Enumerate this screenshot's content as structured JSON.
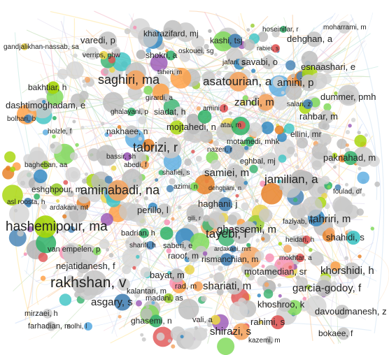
{
  "palette": [
    "#c8c8c8",
    "#bdbdbd",
    "#d4d4d4",
    "#f4a460",
    "#9acd32",
    "#3cb371",
    "#4682b4",
    "#e9d44a",
    "#e05656",
    "#9b59b6",
    "#40c4c4",
    "#ff9f43",
    "#f78fb3",
    "#7ed957",
    "#5dade2",
    "#b0b0b0",
    "#cfcfcf",
    "#e67e22",
    "#27ae60",
    "#2e86c1",
    "#a6d608"
  ],
  "edge_colors": [
    "#f2b8c6",
    "#b6d7a8",
    "#c9daf8",
    "#fce5cd",
    "#d9d2e9",
    "#cfe2f3",
    "#f9cb9c",
    "#b4e1d9",
    "#ffe599"
  ],
  "authors": [
    {
      "label": "gandjalikhan-nassab, sa"
    },
    {
      "label": "varedi, p"
    },
    {
      "label": "kharazifard, mj"
    },
    {
      "label": "kashi, tsj"
    },
    {
      "label": "hoseinifar, r"
    },
    {
      "label": "moharrami, m"
    },
    {
      "label": "dehghan, a"
    },
    {
      "label": "rabiei, s"
    },
    {
      "label": "oskouei, sg"
    },
    {
      "label": "shokri, a"
    },
    {
      "label": "verrips, ghw"
    },
    {
      "label": "jafari, s"
    },
    {
      "label": "savabi, o"
    },
    {
      "label": "esnaashari, e"
    },
    {
      "label": "taheri, m"
    },
    {
      "label": "saghiri, ma"
    },
    {
      "label": "asatourian, a"
    },
    {
      "label": "bakhtiar, h"
    },
    {
      "label": "amini, p"
    },
    {
      "label": "girardi, a"
    },
    {
      "label": "dashtimoghadam, e"
    },
    {
      "label": "ghalayani, p"
    },
    {
      "label": "siadat, h"
    },
    {
      "label": "zandi, m"
    },
    {
      "label": "salari, z"
    },
    {
      "label": "dummer, pmh"
    },
    {
      "label": "bolhari, b"
    },
    {
      "label": "amini, f"
    },
    {
      "label": "rahbar, m"
    },
    {
      "label": "holzle, f"
    },
    {
      "label": "nakhaee, n"
    },
    {
      "label": "mojtahedi, n"
    },
    {
      "label": "atai, m"
    },
    {
      "label": "ellini, mr"
    },
    {
      "label": "nazeri, r"
    },
    {
      "label": "tabrizi, r"
    },
    {
      "label": "bagheban, aa"
    },
    {
      "label": "motamedi, mhk"
    },
    {
      "label": "bassir, sh"
    },
    {
      "label": "abedi, f"
    },
    {
      "label": "eghbal, mj"
    },
    {
      "label": "paknahad, m"
    },
    {
      "label": "eshghpour, m"
    },
    {
      "label": "shafiei, s"
    },
    {
      "label": "samiei, m"
    },
    {
      "label": "azimi, n"
    },
    {
      "label": "dehghani, n"
    },
    {
      "label": "jamilian, a"
    },
    {
      "label": "foulad, df"
    },
    {
      "label": "aminabadi, na"
    },
    {
      "label": "asl roosta, h"
    },
    {
      "label": "ardakani, mt"
    },
    {
      "label": "perillo, l"
    },
    {
      "label": "haghani, j"
    },
    {
      "label": "fazlyab, m"
    },
    {
      "label": "hashemipour, ma"
    },
    {
      "label": "gili, r"
    },
    {
      "label": "ghassemi, m"
    },
    {
      "label": "tahriri, m"
    },
    {
      "label": "badrian, h"
    },
    {
      "label": "saberi, e"
    },
    {
      "label": "tayebi, l"
    },
    {
      "label": "heidari, h"
    },
    {
      "label": "van empelen, p"
    },
    {
      "label": "sharifi, h"
    },
    {
      "label": "raoof, m"
    },
    {
      "label": "shahidi, s"
    },
    {
      "label": "ardakani, mrt"
    },
    {
      "label": "nejatidanesh, f"
    },
    {
      "label": "rismanchian, m"
    },
    {
      "label": "mokhtar, a"
    },
    {
      "label": "bayat, m"
    },
    {
      "label": "motamedian, sr"
    },
    {
      "label": "khorshidi, h"
    },
    {
      "label": "kalantari, m"
    },
    {
      "label": "rakhshan, v"
    },
    {
      "label": "rad, m"
    },
    {
      "label": "shariati, m"
    },
    {
      "label": "garcia-godoy, f"
    },
    {
      "label": "madani, as"
    },
    {
      "label": "asgary, s"
    },
    {
      "label": "khoshroo, k"
    },
    {
      "label": "davoudmanesh, z"
    },
    {
      "label": "mirzaei, h"
    },
    {
      "label": "ghasemi, n"
    },
    {
      "label": "vali, a"
    },
    {
      "label": "rahimi, s"
    },
    {
      "label": "farhadian, m"
    },
    {
      "label": "solhi, l"
    },
    {
      "label": "shirazi, s"
    },
    {
      "label": "kazemi, m"
    },
    {
      "label": "bokaee, f"
    }
  ]
}
